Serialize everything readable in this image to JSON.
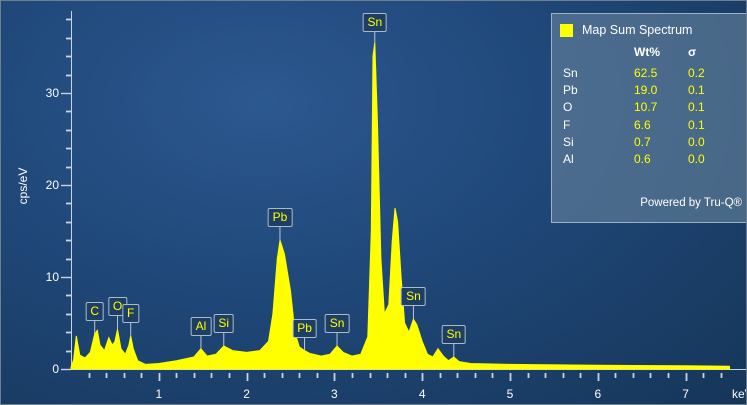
{
  "chart_data": {
    "type": "area",
    "xlabel": "keV",
    "ylabel": "cps/eV",
    "xlim": [
      0,
      7.5
    ],
    "ylim": [
      0,
      38
    ],
    "x_ticks": [
      1,
      2,
      3,
      4,
      5,
      6,
      7
    ],
    "y_ticks": [
      0,
      10,
      20,
      30
    ],
    "grid": false,
    "legend_position": "top-right",
    "series": [
      {
        "name": "Map Sum Spectrum",
        "color": "#ffff00",
        "points": [
          [
            0.0,
            0.2
          ],
          [
            0.03,
            1.0
          ],
          [
            0.06,
            3.6
          ],
          [
            0.1,
            1.5
          ],
          [
            0.16,
            1.2
          ],
          [
            0.22,
            1.8
          ],
          [
            0.27,
            3.8
          ],
          [
            0.3,
            4.2
          ],
          [
            0.33,
            2.6
          ],
          [
            0.38,
            2.0
          ],
          [
            0.43,
            3.4
          ],
          [
            0.47,
            2.6
          ],
          [
            0.5,
            3.0
          ],
          [
            0.53,
            4.3
          ],
          [
            0.57,
            2.2
          ],
          [
            0.62,
            1.6
          ],
          [
            0.66,
            2.6
          ],
          [
            0.68,
            3.6
          ],
          [
            0.71,
            2.2
          ],
          [
            0.76,
            0.9
          ],
          [
            0.85,
            0.5
          ],
          [
            1.0,
            0.6
          ],
          [
            1.2,
            0.9
          ],
          [
            1.4,
            1.3
          ],
          [
            1.48,
            2.2
          ],
          [
            1.55,
            1.4
          ],
          [
            1.65,
            1.6
          ],
          [
            1.74,
            2.5
          ],
          [
            1.84,
            2.0
          ],
          [
            2.0,
            1.8
          ],
          [
            2.15,
            2.0
          ],
          [
            2.25,
            3.0
          ],
          [
            2.3,
            6.0
          ],
          [
            2.35,
            12.0
          ],
          [
            2.38,
            14.0
          ],
          [
            2.43,
            12.5
          ],
          [
            2.5,
            8.5
          ],
          [
            2.55,
            4.0
          ],
          [
            2.6,
            2.4
          ],
          [
            2.66,
            2.0
          ],
          [
            2.72,
            1.7
          ],
          [
            2.85,
            1.4
          ],
          [
            2.95,
            1.6
          ],
          [
            3.03,
            2.5
          ],
          [
            3.1,
            1.8
          ],
          [
            3.2,
            1.4
          ],
          [
            3.3,
            1.6
          ],
          [
            3.38,
            3.5
          ],
          [
            3.42,
            15.0
          ],
          [
            3.44,
            34.0
          ],
          [
            3.46,
            35.5
          ],
          [
            3.49,
            27.0
          ],
          [
            3.53,
            12.0
          ],
          [
            3.57,
            6.0
          ],
          [
            3.62,
            7.0
          ],
          [
            3.66,
            14.0
          ],
          [
            3.69,
            17.5
          ],
          [
            3.72,
            16.0
          ],
          [
            3.76,
            10.0
          ],
          [
            3.8,
            5.0
          ],
          [
            3.85,
            4.0
          ],
          [
            3.9,
            5.4
          ],
          [
            3.94,
            4.8
          ],
          [
            4.0,
            3.0
          ],
          [
            4.06,
            1.6
          ],
          [
            4.12,
            1.3
          ],
          [
            4.18,
            2.2
          ],
          [
            4.24,
            1.4
          ],
          [
            4.3,
            0.9
          ],
          [
            4.36,
            1.3
          ],
          [
            4.42,
            0.8
          ],
          [
            4.55,
            0.6
          ],
          [
            5.0,
            0.5
          ],
          [
            6.0,
            0.4
          ],
          [
            7.0,
            0.35
          ],
          [
            7.5,
            0.3
          ]
        ]
      }
    ],
    "peak_labels": [
      {
        "text": "C",
        "x": 0.27
      },
      {
        "text": "O",
        "x": 0.53
      },
      {
        "text": "F",
        "x": 0.68
      },
      {
        "text": "Al",
        "x": 1.48
      },
      {
        "text": "Si",
        "x": 1.74
      },
      {
        "text": "Pb",
        "x": 2.38
      },
      {
        "text": "Pb",
        "x": 2.66
      },
      {
        "text": "Sn",
        "x": 3.03
      },
      {
        "text": "Sn",
        "x": 3.46
      },
      {
        "text": "Sn",
        "x": 3.9
      },
      {
        "text": "Sn",
        "x": 4.36
      }
    ],
    "results_table": {
      "title": "Map Sum Spectrum",
      "headers": [
        "",
        "Wt%",
        "σ"
      ],
      "rows": [
        {
          "element": "Sn",
          "wt": "62.5",
          "sigma": "0.2"
        },
        {
          "element": "Pb",
          "wt": "19.0",
          "sigma": "0.1"
        },
        {
          "element": "O",
          "wt": "10.7",
          "sigma": "0.1"
        },
        {
          "element": "F",
          "wt": "6.6",
          "sigma": "0.1"
        },
        {
          "element": "Si",
          "wt": "0.7",
          "sigma": "0.0"
        },
        {
          "element": "Al",
          "wt": "0.6",
          "sigma": "0.0"
        }
      ],
      "footer": "Powered by Tru-Q®"
    }
  }
}
